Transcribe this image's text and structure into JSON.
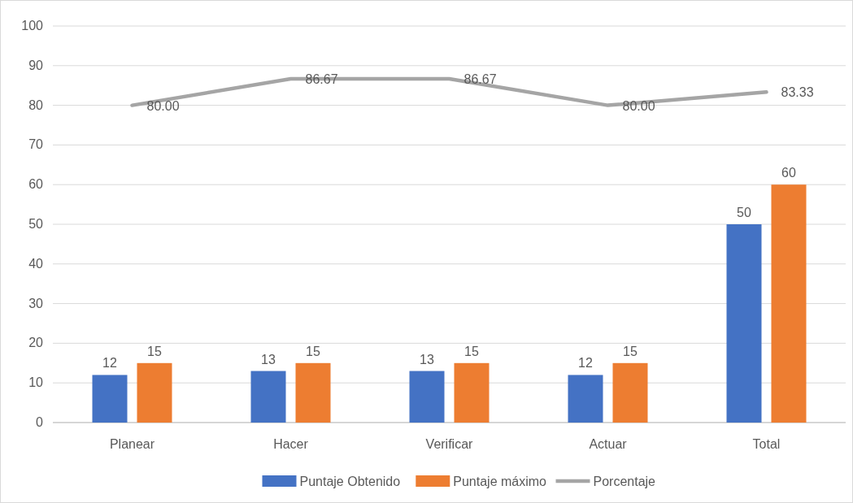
{
  "chart_data": {
    "type": "bar",
    "categories": [
      "Planear",
      "Hacer",
      "Verificar",
      "Actuar",
      "Total"
    ],
    "series": [
      {
        "name": "Puntaje Obtenido",
        "color": "#4472c4",
        "values": [
          12,
          13,
          13,
          12,
          50
        ],
        "value_labels": [
          "12",
          "13",
          "13",
          "12",
          "50"
        ]
      },
      {
        "name": "Puntaje máximo",
        "color": "#ed7d31",
        "values": [
          15,
          15,
          15,
          15,
          60
        ],
        "value_labels": [
          "15",
          "15",
          "15",
          "15",
          "60"
        ]
      },
      {
        "name": "Porcentaje",
        "type": "line",
        "color": "#a5a5a5",
        "values": [
          80,
          86.67,
          86.67,
          80,
          83.33
        ],
        "value_labels": [
          "80.00",
          "86.67",
          "86.67",
          "80.00",
          "83.33"
        ]
      }
    ],
    "ylim": [
      0,
      100
    ],
    "yticks": [
      0,
      10,
      20,
      30,
      40,
      50,
      60,
      70,
      80,
      90,
      100
    ],
    "grid": "y",
    "legend": "bottom",
    "marker": "none"
  }
}
